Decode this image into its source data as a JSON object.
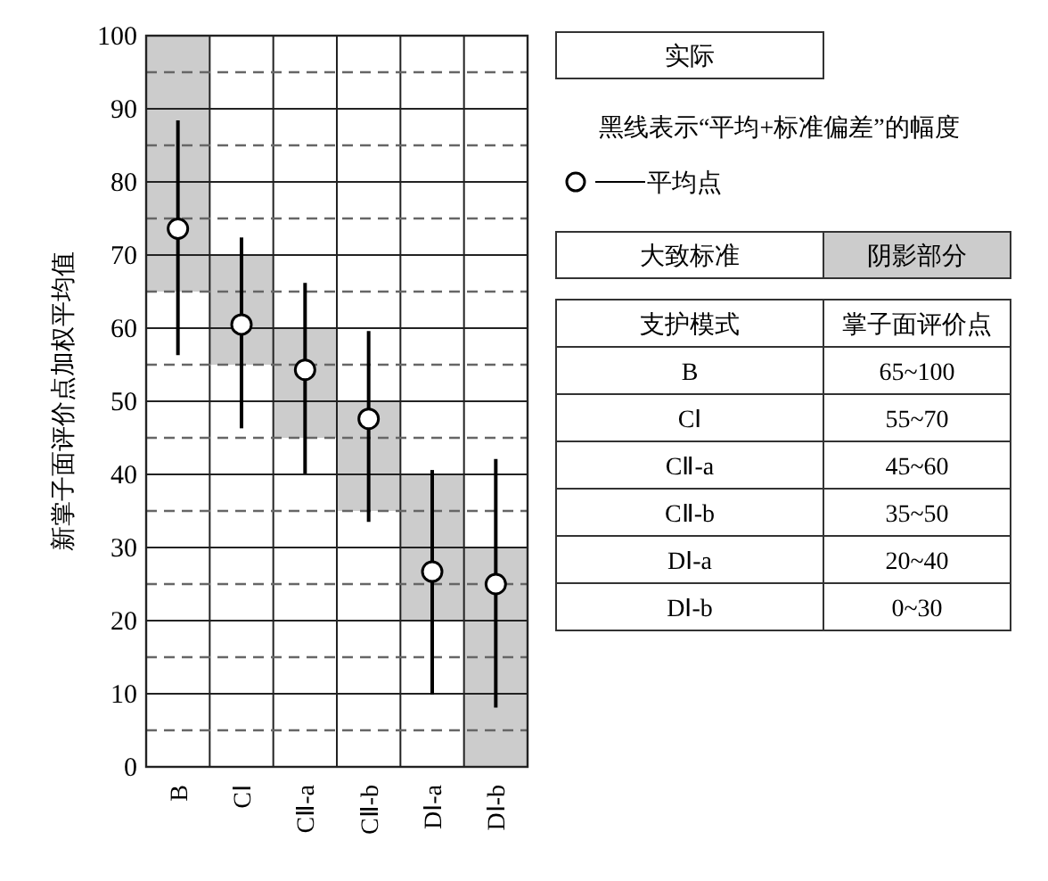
{
  "chart_data": {
    "type": "bar",
    "ylabel": "新掌子面评价点加权平均值",
    "categories": [
      "B",
      "CⅠ",
      "CⅡ-a",
      "CⅡ-b",
      "DⅠ-a",
      "DⅠ-b"
    ],
    "series": [
      {
        "color": "#cccccc",
        "base": [
          65,
          55,
          45,
          35,
          20,
          0
        ],
        "values": [
          35,
          15,
          15,
          15,
          20,
          30
        ]
      },
      {
        "type": "scatter",
        "name": "平均点",
        "color": "#000000",
        "marker": "circle",
        "values": [
          73.6,
          60.5,
          54.3,
          47.6,
          26.7,
          25.0
        ],
        "errors": [
          [
            56.3,
            88.4
          ],
          [
            46.3,
            72.4
          ],
          [
            40.1,
            66.2
          ],
          [
            33.5,
            59.6
          ],
          [
            9.9,
            40.6
          ],
          [
            8.1,
            42.1
          ]
        ]
      }
    ],
    "ylim": [
      0,
      100
    ],
    "yticks": [
      0,
      10,
      20,
      30,
      40,
      50,
      60,
      70,
      80,
      90,
      100
    ],
    "grid": true,
    "legend": "right",
    "ref_lines": [
      {
        "axis": "y",
        "value": 5,
        "color": "#666666",
        "line_style": "dashed"
      },
      {
        "axis": "y",
        "value": 15,
        "color": "#666666",
        "line_style": "dashed"
      },
      {
        "axis": "y",
        "value": 25,
        "color": "#666666",
        "line_style": "dashed"
      },
      {
        "axis": "y",
        "value": 35,
        "color": "#666666",
        "line_style": "dashed"
      },
      {
        "axis": "y",
        "value": 45,
        "color": "#666666",
        "line_style": "dashed"
      },
      {
        "axis": "y",
        "value": 55,
        "color": "#666666",
        "line_style": "dashed"
      },
      {
        "axis": "y",
        "value": 65,
        "color": "#666666",
        "line_style": "dashed"
      },
      {
        "axis": "y",
        "value": 75,
        "color": "#666666",
        "line_style": "dashed"
      },
      {
        "axis": "y",
        "value": 85,
        "color": "#666666",
        "line_style": "dashed"
      },
      {
        "axis": "y",
        "value": 95,
        "color": "#666666",
        "line_style": "dashed"
      }
    ],
    "annotations": [
      "实际",
      "黑线表示“平均+标准偏差”的幅度",
      "大致标准",
      "阴影部分",
      "支护模式",
      "掌子面评价点",
      "B",
      "65~100",
      "CⅠ",
      "55~70",
      "CⅡ-a",
      "45~60",
      "CⅡ-b",
      "35~50",
      "DⅠ-a",
      "20~40",
      "DⅠ-b",
      "0~30"
    ]
  }
}
